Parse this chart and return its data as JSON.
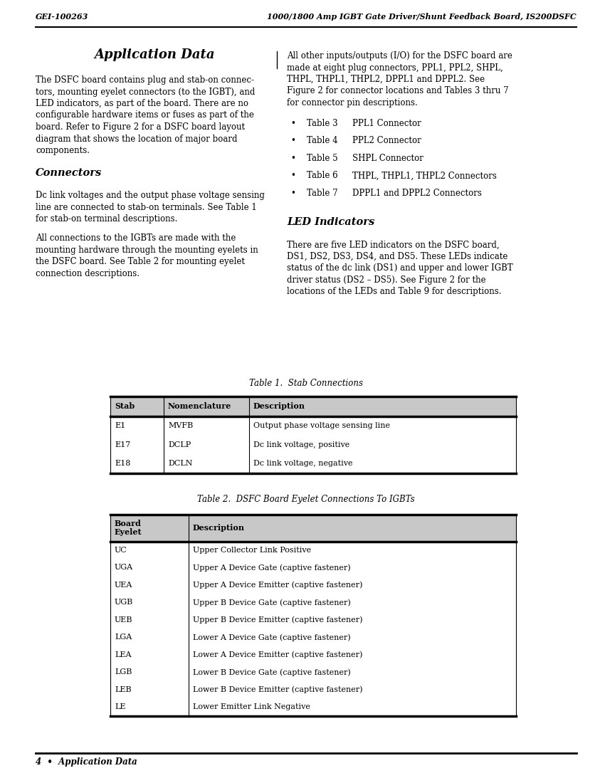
{
  "header_left": "GEI-100263",
  "header_right": "1000/1800 Amp IGBT Gate Driver/Shunt Feedback Board, IS200DSFC",
  "footer_text": "4  •  Application Data",
  "page_title": "Application Data",
  "table1_title": "Table 1.  Stab Connections",
  "table1_headers": [
    "Stab",
    "Nomenclature",
    "Description"
  ],
  "table1_rows": [
    [
      "E1",
      "MVFB",
      "Output phase voltage sensing line"
    ],
    [
      "E17",
      "DCLP",
      "Dc link voltage, positive"
    ],
    [
      "E18",
      "DCLN",
      "Dc link voltage, negative"
    ]
  ],
  "table2_title": "Table 2.  DSFC Board Eyelet Connections To IGBTs",
  "table2_headers": [
    "Board\nEyelet",
    "Description"
  ],
  "table2_rows": [
    [
      "UC",
      "Upper Collector Link Positive"
    ],
    [
      "UGA",
      "Upper A Device Gate (captive fastener)"
    ],
    [
      "UEA",
      "Upper A Device Emitter (captive fastener)"
    ],
    [
      "UGB",
      "Upper B Device Gate (captive fastener)"
    ],
    [
      "UEB",
      "Upper B Device Emitter (captive fastener)"
    ],
    [
      "LGA",
      "Lower A Device Gate (captive fastener)"
    ],
    [
      "LEA",
      "Lower A Device Emitter (captive fastener)"
    ],
    [
      "LGB",
      "Lower B Device Gate (captive fastener)"
    ],
    [
      "LEB",
      "Lower B Device Emitter (captive fastener)"
    ],
    [
      "LE",
      "Lower Emitter Link Negative"
    ]
  ],
  "bg_color": "#ffffff",
  "text_color": "#000000"
}
